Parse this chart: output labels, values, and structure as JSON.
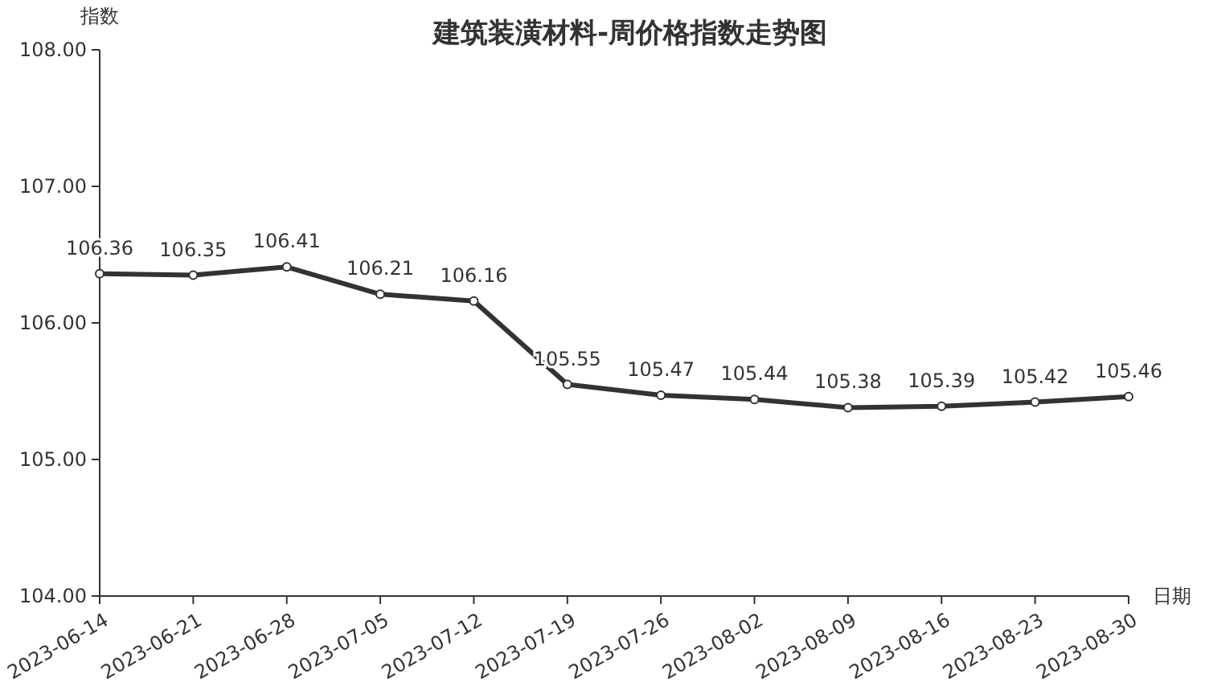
{
  "chart_data": {
    "type": "line",
    "title": "建筑装潢材料-周价格指数走势图",
    "xlabel": "日期",
    "ylabel": "指数",
    "categories": [
      "2023-06-14",
      "2023-06-21",
      "2023-06-28",
      "2023-07-05",
      "2023-07-12",
      "2023-07-19",
      "2023-07-26",
      "2023-08-02",
      "2023-08-09",
      "2023-08-16",
      "2023-08-23",
      "2023-08-30"
    ],
    "series": [
      {
        "color": "#333333",
        "values": [
          106.36,
          106.35,
          106.41,
          106.21,
          106.16,
          105.55,
          105.47,
          105.44,
          105.38,
          105.39,
          105.42,
          105.46
        ]
      }
    ],
    "ylim": [
      104,
      108
    ],
    "yticks": [
      {
        "value": 104,
        "label": "104.00"
      },
      {
        "value": 105,
        "label": "105.00"
      },
      {
        "value": 106,
        "label": "106.00"
      },
      {
        "value": 107,
        "label": "107.00"
      },
      {
        "value": 108,
        "label": "108.00"
      }
    ],
    "grid": false,
    "marker": "circle",
    "line_style": "solid",
    "data_labels": true
  }
}
